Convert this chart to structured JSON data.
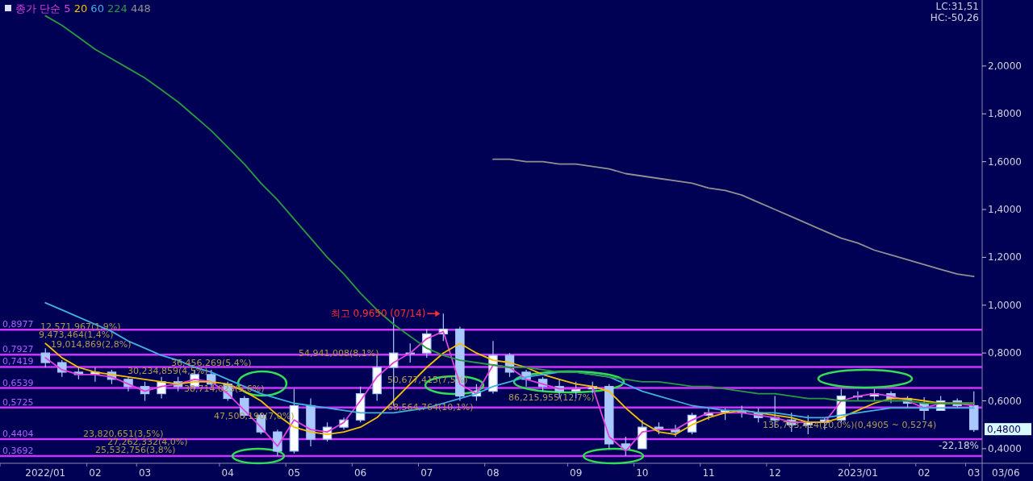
{
  "chart_data": {
    "type": "candlestick",
    "legend_title": "종가 단순",
    "legend": "top left",
    "color": "#a8c8ff",
    "categories": [
      "2022/01",
      null,
      null,
      "02",
      null,
      null,
      "03",
      null,
      null,
      null,
      null,
      "04",
      null,
      null,
      null,
      "05",
      null,
      null,
      null,
      "06",
      null,
      null,
      null,
      "07",
      null,
      null,
      null,
      "08",
      null,
      null,
      null,
      null,
      "09",
      null,
      null,
      null,
      "10",
      null,
      null,
      null,
      "11",
      null,
      null,
      null,
      "12",
      null,
      null,
      null,
      null,
      "2023/01",
      null,
      null,
      null,
      "02",
      null,
      null,
      "03"
    ],
    "ohlc": [
      [
        0.8,
        0.82,
        0.74,
        0.76
      ],
      [
        0.76,
        0.77,
        0.7,
        0.72
      ],
      [
        0.72,
        0.74,
        0.69,
        0.71
      ],
      [
        0.71,
        0.74,
        0.68,
        0.72
      ],
      [
        0.72,
        0.73,
        0.67,
        0.69
      ],
      [
        0.69,
        0.7,
        0.64,
        0.66
      ],
      [
        0.66,
        0.68,
        0.6,
        0.63
      ],
      [
        0.63,
        0.7,
        0.61,
        0.68
      ],
      [
        0.68,
        0.7,
        0.64,
        0.66
      ],
      [
        0.66,
        0.73,
        0.65,
        0.71
      ],
      [
        0.71,
        0.73,
        0.66,
        0.67
      ],
      [
        0.67,
        0.68,
        0.6,
        0.61
      ],
      [
        0.61,
        0.62,
        0.53,
        0.54
      ],
      [
        0.54,
        0.55,
        0.46,
        0.47
      ],
      [
        0.47,
        0.48,
        0.37,
        0.39
      ],
      [
        0.39,
        0.65,
        0.38,
        0.58
      ],
      [
        0.58,
        0.61,
        0.41,
        0.44
      ],
      [
        0.44,
        0.51,
        0.43,
        0.49
      ],
      [
        0.49,
        0.53,
        0.48,
        0.52
      ],
      [
        0.52,
        0.66,
        0.51,
        0.63
      ],
      [
        0.63,
        0.79,
        0.6,
        0.74
      ],
      [
        0.74,
        0.95,
        0.58,
        0.8
      ],
      [
        0.8,
        0.84,
        0.76,
        0.8
      ],
      [
        0.8,
        0.9,
        0.78,
        0.88
      ],
      [
        0.88,
        0.965,
        0.85,
        0.9
      ],
      [
        0.9,
        0.91,
        0.6,
        0.62
      ],
      [
        0.62,
        0.67,
        0.6,
        0.64
      ],
      [
        0.64,
        0.85,
        0.63,
        0.79
      ],
      [
        0.79,
        0.8,
        0.7,
        0.72
      ],
      [
        0.72,
        0.73,
        0.66,
        0.69
      ],
      [
        0.69,
        0.7,
        0.64,
        0.66
      ],
      [
        0.66,
        0.69,
        0.61,
        0.64
      ],
      [
        0.64,
        0.68,
        0.61,
        0.65
      ],
      [
        0.65,
        0.68,
        0.63,
        0.66
      ],
      [
        0.66,
        0.67,
        0.4,
        0.42
      ],
      [
        0.42,
        0.45,
        0.37,
        0.4
      ],
      [
        0.4,
        0.52,
        0.4,
        0.49
      ],
      [
        0.49,
        0.51,
        0.46,
        0.48
      ],
      [
        0.48,
        0.5,
        0.45,
        0.47
      ],
      [
        0.47,
        0.55,
        0.46,
        0.54
      ],
      [
        0.54,
        0.57,
        0.52,
        0.55
      ],
      [
        0.55,
        0.57,
        0.52,
        0.56
      ],
      [
        0.56,
        0.58,
        0.53,
        0.55
      ],
      [
        0.55,
        0.57,
        0.51,
        0.53
      ],
      [
        0.53,
        0.62,
        0.49,
        0.52
      ],
      [
        0.52,
        0.55,
        0.47,
        0.5
      ],
      [
        0.5,
        0.54,
        0.46,
        0.51
      ],
      [
        0.51,
        0.53,
        0.48,
        0.52
      ],
      [
        0.52,
        0.65,
        0.51,
        0.62
      ],
      [
        0.62,
        0.64,
        0.6,
        0.62
      ],
      [
        0.62,
        0.65,
        0.6,
        0.63
      ],
      [
        0.63,
        0.64,
        0.59,
        0.61
      ],
      [
        0.61,
        0.62,
        0.57,
        0.59
      ],
      [
        0.59,
        0.615,
        0.52,
        0.56
      ],
      [
        0.56,
        0.62,
        0.56,
        0.6
      ],
      [
        0.6,
        0.61,
        0.57,
        0.58
      ],
      [
        0.58,
        0.64,
        0.47,
        0.48
      ]
    ],
    "series": [
      {
        "name": "5",
        "type": "line",
        "color": "#e040e0",
        "values": [
          0.78,
          0.73,
          0.71,
          0.71,
          0.7,
          0.67,
          0.64,
          0.66,
          0.67,
          0.69,
          0.68,
          0.63,
          0.56,
          0.49,
          0.41,
          0.52,
          0.48,
          0.47,
          0.51,
          0.6,
          0.7,
          0.76,
          0.8,
          0.86,
          0.89,
          0.67,
          0.63,
          0.75,
          0.74,
          0.69,
          0.67,
          0.65,
          0.65,
          0.66,
          0.45,
          0.39,
          0.47,
          0.48,
          0.48,
          0.52,
          0.55,
          0.55,
          0.55,
          0.54,
          0.53,
          0.51,
          0.51,
          0.51,
          0.6,
          0.62,
          0.63,
          0.62,
          0.6,
          0.57,
          0.59,
          0.59,
          0.58
        ]
      },
      {
        "name": "20",
        "type": "line",
        "color": "#f5c000",
        "values": [
          0.84,
          0.78,
          0.74,
          0.72,
          0.71,
          0.7,
          0.69,
          0.68,
          0.67,
          0.68,
          0.68,
          0.67,
          0.64,
          0.6,
          0.54,
          0.49,
          0.47,
          0.46,
          0.47,
          0.49,
          0.53,
          0.6,
          0.67,
          0.74,
          0.8,
          0.84,
          0.8,
          0.77,
          0.76,
          0.74,
          0.71,
          0.69,
          0.67,
          0.66,
          0.64,
          0.57,
          0.51,
          0.47,
          0.46,
          0.5,
          0.53,
          0.55,
          0.56,
          0.55,
          0.54,
          0.53,
          0.51,
          0.51,
          0.53,
          0.56,
          0.59,
          0.61,
          0.61,
          0.6,
          0.59,
          0.59,
          0.59
        ]
      },
      {
        "name": "60",
        "type": "line",
        "color": "#40b0e0",
        "values": [
          1.01,
          0.98,
          0.95,
          0.92,
          0.89,
          0.85,
          0.82,
          0.79,
          0.77,
          0.74,
          0.72,
          0.69,
          0.66,
          0.63,
          0.61,
          0.59,
          0.58,
          0.57,
          0.56,
          0.55,
          0.55,
          0.55,
          0.56,
          0.57,
          0.59,
          0.61,
          0.63,
          0.66,
          0.68,
          0.7,
          0.71,
          0.72,
          0.72,
          0.71,
          0.7,
          0.67,
          0.64,
          0.62,
          0.6,
          0.58,
          0.57,
          0.56,
          0.56,
          0.55,
          0.55,
          0.54,
          0.53,
          0.53,
          0.54,
          0.55,
          0.56,
          0.57,
          0.57,
          0.57,
          0.57,
          0.57,
          0.57
        ]
      },
      {
        "name": "224",
        "type": "line",
        "color": "#2a9a40",
        "values": [
          2.21,
          2.17,
          2.12,
          2.07,
          2.03,
          1.99,
          1.95,
          1.9,
          1.85,
          1.79,
          1.73,
          1.66,
          1.59,
          1.51,
          1.44,
          1.36,
          1.28,
          1.2,
          1.13,
          1.05,
          0.98,
          0.92,
          0.87,
          0.82,
          0.79,
          0.77,
          0.76,
          0.75,
          0.74,
          0.74,
          0.73,
          0.72,
          0.72,
          0.71,
          0.7,
          0.69,
          0.68,
          0.68,
          0.67,
          0.66,
          0.66,
          0.65,
          0.64,
          0.63,
          0.63,
          0.62,
          0.61,
          0.61,
          0.6,
          0.6,
          0.6,
          0.6,
          0.6,
          0.59,
          0.59,
          0.59,
          0.59
        ]
      },
      {
        "name": "448",
        "type": "line",
        "color": "#909090",
        "values": [
          null,
          null,
          null,
          null,
          null,
          null,
          null,
          null,
          null,
          null,
          null,
          null,
          null,
          null,
          null,
          null,
          null,
          null,
          null,
          null,
          null,
          null,
          null,
          null,
          null,
          null,
          null,
          1.61,
          1.61,
          1.6,
          1.6,
          1.59,
          1.59,
          1.58,
          1.57,
          1.55,
          1.54,
          1.53,
          1.52,
          1.51,
          1.49,
          1.48,
          1.46,
          1.43,
          1.4,
          1.37,
          1.34,
          1.31,
          1.28,
          1.26,
          1.23,
          1.21,
          1.19,
          1.17,
          1.15,
          1.13,
          1.12
        ]
      }
    ],
    "ylim": [
      0.339,
      2.276
    ],
    "yticks": [
      {
        "value": 0.4,
        "label": "0,4000"
      },
      {
        "value": 0.6,
        "label": "0,6000"
      },
      {
        "value": 0.8,
        "label": "0,8000"
      },
      {
        "value": 1.0,
        "label": "1,0000"
      },
      {
        "value": 1.2,
        "label": "1,2000"
      },
      {
        "value": 1.4,
        "label": "1,4000"
      },
      {
        "value": 1.6,
        "label": "1,6000"
      },
      {
        "value": 1.8,
        "label": "1,8000"
      },
      {
        "value": 2.0,
        "label": "2,0000"
      }
    ],
    "ref_lines": [
      {
        "axis": "y",
        "value": 0.8977,
        "label": "0,8977",
        "color": "#cc33ff"
      },
      {
        "axis": "y",
        "value": 0.7927,
        "label": "0,7927",
        "color": "#cc33ff"
      },
      {
        "axis": "y",
        "value": 0.7419,
        "label": "0,7419",
        "color": "#cc33ff"
      },
      {
        "axis": "y",
        "value": 0.6539,
        "label": "0,6539",
        "color": "#cc33ff"
      },
      {
        "axis": "y",
        "value": 0.5725,
        "label": "0,5725",
        "color": "#cc33ff"
      },
      {
        "axis": "y",
        "value": 0.4404,
        "label": "0,4404",
        "color": "#cc33ff"
      },
      {
        "axis": "y",
        "value": 0.3692,
        "label": "0,3692",
        "color": "#cc33ff"
      }
    ],
    "annotations": [
      {
        "text": "최고 0,9650 (07/14)",
        "y": 0.965
      },
      "12,571,967(1,9%)",
      "9,473,464(1,4%)",
      "19,014,869(2,8%)",
      "54,941,008(8,1%)",
      "36,456,269(5,4%)",
      "30,234,859(4,5%)",
      "50,677,415(7,5%)",
      "38,714,023(5,6%)",
      "86,215,955(12,7%)",
      "68,564,764(10,1%)",
      "47,500,190(7,0%)",
      "135,703,414(20,0%)(0,4905 ~ 0,5274)",
      "23,820,651(3,5%)",
      "27,262,332(4,0%)",
      "25,532,756(3,8%)",
      "0,4800",
      "-22,18%",
      "LC:31,51",
      "HC:-50,26",
      "03/06"
    ]
  }
}
